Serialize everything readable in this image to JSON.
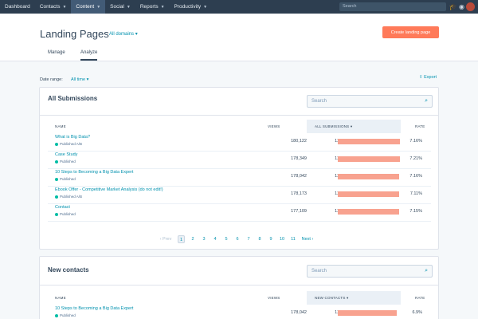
{
  "topnav": {
    "items": [
      {
        "label": "Dashboard",
        "caret": false
      },
      {
        "label": "Contacts",
        "caret": true
      },
      {
        "label": "Content",
        "caret": true
      },
      {
        "label": "Social",
        "caret": true
      },
      {
        "label": "Reports",
        "caret": true
      },
      {
        "label": "Productivity",
        "caret": true
      }
    ],
    "active_item": "Content",
    "search_placeholder": "Search",
    "icons": [
      "graduation-cap-icon",
      "notifications-icon",
      "avatar"
    ]
  },
  "header": {
    "title": "Landing Pages",
    "domain_filter": "All domains",
    "create_button": "Create landing page",
    "tabs": [
      "Manage",
      "Analyze"
    ],
    "active_tab": "Analyze"
  },
  "filters": {
    "date_range_label": "Date range:",
    "date_range_value": "All time",
    "export_label": "Export"
  },
  "submissions": {
    "title": "All Submissions",
    "search_placeholder": "Search",
    "columns": {
      "name": "NAME",
      "views": "VIEWS",
      "submissions": "ALL SUBMISSIONS",
      "rate": "RATE"
    },
    "rows": [
      {
        "name": "What is Big Data?",
        "status": "Published A/B",
        "views": "180,122",
        "submissions": "12,893",
        "rate": "7.16%",
        "bar_fraction": 1.0
      },
      {
        "name": "Case Study",
        "status": "Published",
        "views": "178,349",
        "submissions": "12,856",
        "rate": "7.21%",
        "bar_fraction": 0.997
      },
      {
        "name": "10 Steps to Becoming a Big Data Expert",
        "status": "Published",
        "views": "178,042",
        "submissions": "12,741",
        "rate": "7.16%",
        "bar_fraction": 0.988
      },
      {
        "name": "Ebook Offer - Competitive Market Analysis (do not edit!)",
        "status": "Published A/B",
        "views": "178,173",
        "submissions": "12,664",
        "rate": "7.11%",
        "bar_fraction": 0.982
      },
      {
        "name": "Contact",
        "status": "Published",
        "views": "177,109",
        "submissions": "12,655",
        "rate": "7.15%",
        "bar_fraction": 0.981
      }
    ],
    "pagination": {
      "prev": "Prev",
      "pages": [
        "1",
        "2",
        "3",
        "4",
        "5",
        "6",
        "7",
        "8",
        "9",
        "10",
        "11"
      ],
      "current": "1",
      "next": "Next"
    }
  },
  "contacts": {
    "title": "New contacts",
    "search_placeholder": "Search",
    "columns": {
      "name": "NAME",
      "views": "VIEWS",
      "contacts": "NEW CONTACTS",
      "rate": "RATE"
    },
    "rows": [
      {
        "name": "10 Steps to Becoming a Big Data Expert",
        "status": "Published",
        "views": "178,042",
        "contacts": "12,284",
        "rate": "6.9%",
        "bar_fraction": 0.95
      }
    ]
  },
  "colors": {
    "accent": "#0091ae",
    "brand": "#ff7a59",
    "bar": "#f8a28f",
    "nav": "#2d3e50"
  }
}
